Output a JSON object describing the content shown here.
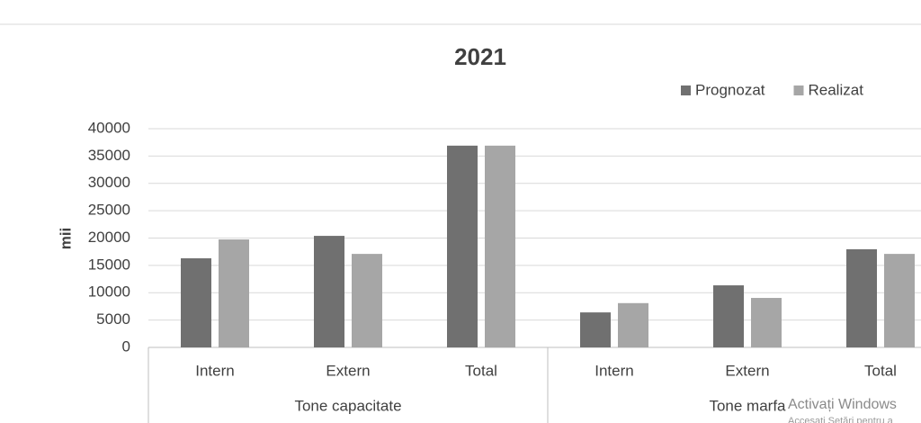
{
  "chart_data": {
    "type": "bar",
    "title": "2021",
    "y_label": "mii",
    "categories": [
      "Intern",
      "Extern",
      "Total",
      "Intern",
      "Extern",
      "Total"
    ],
    "groups": [
      "Tone capacitate",
      "Tone marfa"
    ],
    "series": [
      {
        "name": "Prognozat",
        "color": "#707070",
        "values": [
          16300,
          20400,
          36900,
          6400,
          11350,
          17950
        ]
      },
      {
        "name": "Realizat",
        "color": "#a6a6a6",
        "values": [
          19750,
          17100,
          36900,
          8100,
          9050,
          17100
        ]
      }
    ],
    "ylim": [
      0,
      40000
    ],
    "yticks": [
      0,
      5000,
      10000,
      15000,
      20000,
      25000,
      30000,
      35000,
      40000
    ],
    "grid": true,
    "legend": "top-right"
  },
  "watermark": {
    "title": "Activați Windows",
    "subtitle": "Accesați Setări pentru a"
  }
}
